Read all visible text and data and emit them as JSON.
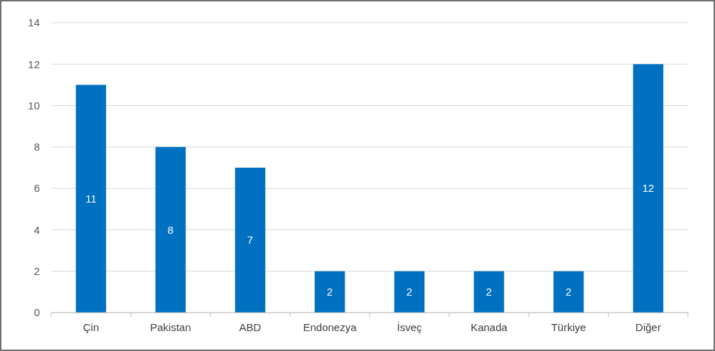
{
  "chart_data": {
    "type": "bar",
    "categories": [
      "Çin",
      "Pakistan",
      "ABD",
      "Endonezya",
      "İsveç",
      "Kanada",
      "Türkiye",
      "Diğer"
    ],
    "values": [
      11,
      8,
      7,
      2,
      2,
      2,
      2,
      12
    ],
    "color": "#0070c0",
    "ylim": [
      0,
      14
    ],
    "yticks": [
      0,
      2,
      4,
      6,
      8,
      10,
      12,
      14
    ],
    "grid": "y",
    "data_labels": true
  }
}
